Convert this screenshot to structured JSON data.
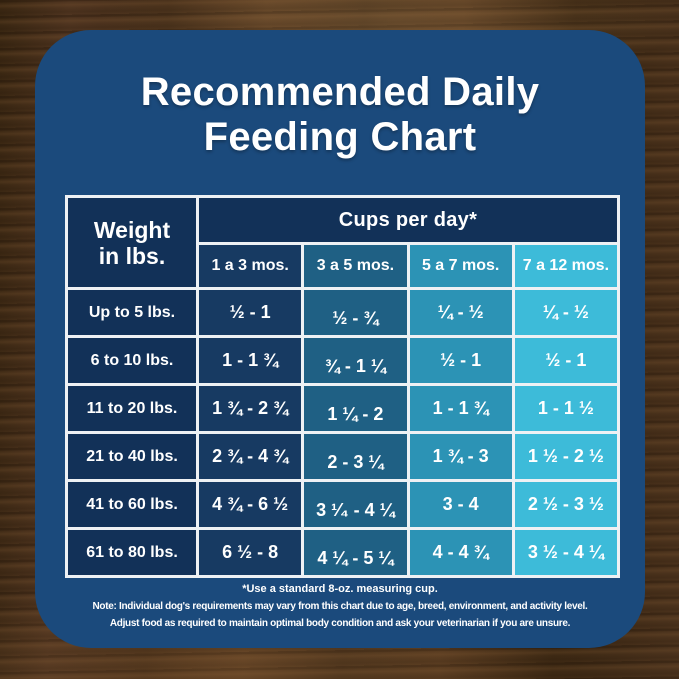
{
  "title": {
    "line1": "Recommended Daily",
    "line2": "Feeding Chart"
  },
  "chart_data": {
    "type": "table",
    "title": "Recommended Daily Feeding Chart",
    "weight_header_line1": "Weight",
    "weight_header_line2": "in lbs.",
    "cups_header": "Cups per day*",
    "age_columns": [
      "1 a 3 mos.",
      "3 a 5 mos.",
      "5 a 7 mos.",
      "7 a 12 mos."
    ],
    "weight_rows": [
      "Up to 5 lbs.",
      "6 to 10 lbs.",
      "11 to 20 lbs.",
      "21 to 40 lbs.",
      "41 to 60 lbs.",
      "61 to 80 lbs."
    ],
    "values": [
      [
        "½ - 1",
        "½ - ¾",
        "¼ - ½",
        "¼ - ½"
      ],
      [
        "1 - 1 ¾",
        "¾ - 1 ¼",
        "½ - 1",
        "½ - 1"
      ],
      [
        "1 ¾ - 2 ¾",
        "1 ¼ - 2",
        "1 - 1 ¾",
        "1 - 1 ½"
      ],
      [
        "2 ¾ - 4 ¾",
        "2 - 3 ¼",
        "1 ¾ - 3",
        "1 ½ - 2 ½"
      ],
      [
        "4 ¾ - 6 ½",
        "3 ¹⁄₄ - 4 ¼",
        "3 - 4",
        "2 ½ - 3 ½"
      ],
      [
        "6 ½ - 8",
        "4 ¼ - 5 ¼",
        "4 - 4 ¾",
        "3 ½ - 4 ¼"
      ]
    ]
  },
  "footnotes": {
    "line1": "*Use a standard 8-oz. measuring cup.",
    "line2": "Note: Individual dog's requirements may vary from this chart due to age, breed, environment, and activity level.",
    "line3": "Adjust food as required to maintain optimal body condition and ask your veterinarian if you are unsure."
  },
  "colors": {
    "panel": "#1b4a7c",
    "col_weight": "#123158",
    "col_1": "#173a62",
    "col_2": "#1f6084",
    "col_3": "#2c93b5",
    "col_4": "#3dbbd9",
    "border": "#eef1f4",
    "wood_base": "#4a3119",
    "text": "#ffffff"
  }
}
